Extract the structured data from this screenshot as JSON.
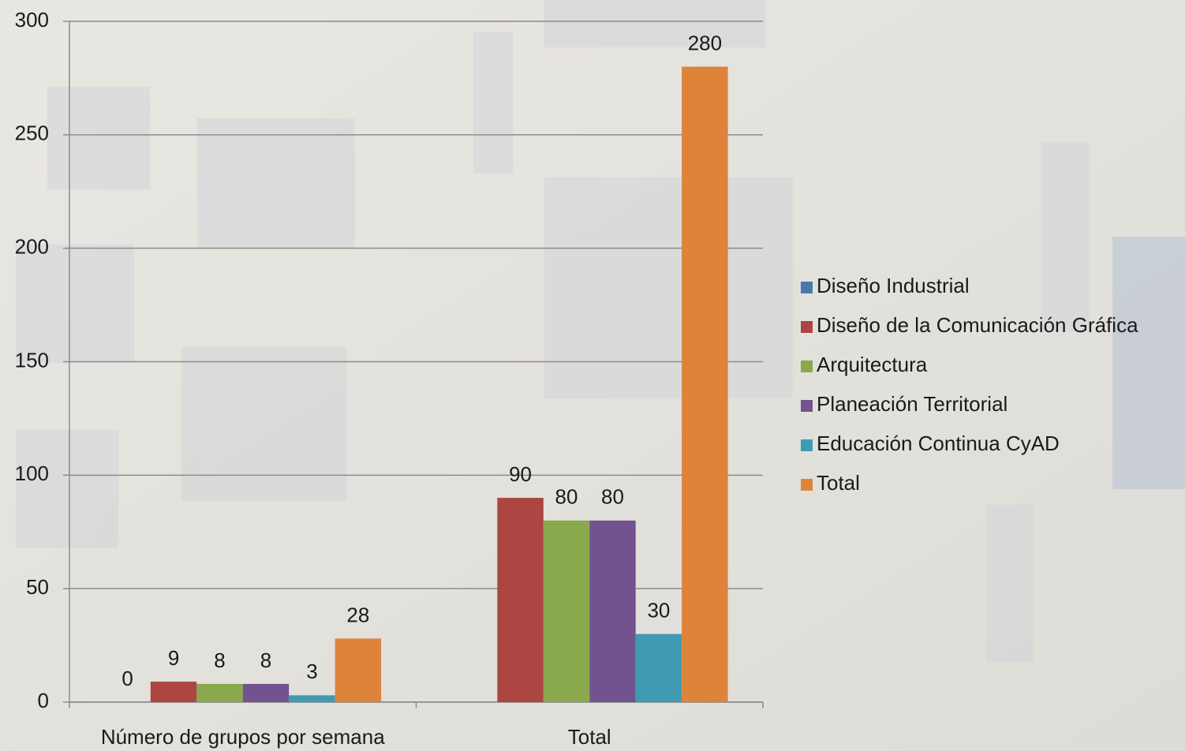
{
  "chart_data": {
    "type": "bar",
    "categories": [
      "Número de grupos por semana",
      "Total"
    ],
    "series": [
      {
        "name": "Diseño Industrial",
        "color": "#4a78ad",
        "values": [
          0,
          null
        ]
      },
      {
        "name": "Diseño de la Comunicación Gráfica",
        "color": "#ad4542",
        "values": [
          9,
          90
        ]
      },
      {
        "name": "Arquitectura",
        "color": "#8aa84c",
        "values": [
          8,
          80
        ]
      },
      {
        "name": "Planeación Territorial",
        "color": "#725390",
        "values": [
          8,
          80
        ]
      },
      {
        "name": "Educación Continua CyAD",
        "color": "#3f9bb4",
        "values": [
          3,
          30
        ]
      },
      {
        "name": "Total",
        "color": "#dd833a",
        "values": [
          28,
          280
        ]
      }
    ],
    "ylim": [
      0,
      300
    ],
    "yticks": [
      0,
      50,
      100,
      150,
      200,
      250,
      300
    ],
    "grid": true,
    "legend": "right"
  }
}
